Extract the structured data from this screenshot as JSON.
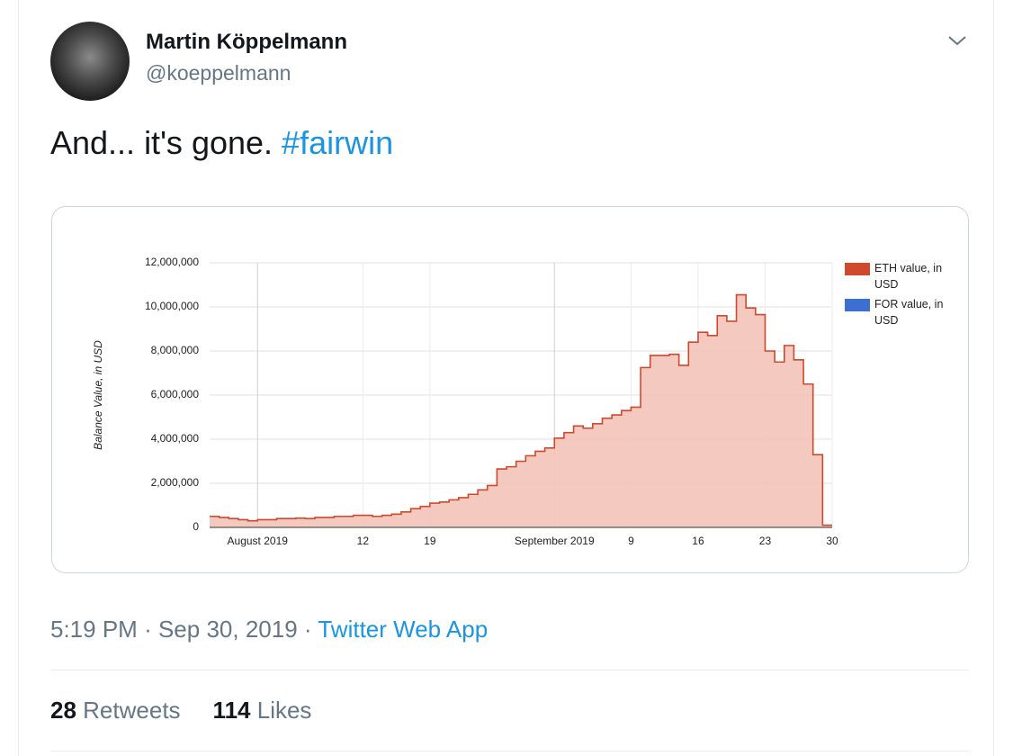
{
  "tweet": {
    "name": "Martin Köppelmann",
    "handle": "@koeppelmann",
    "text": "And... it's gone.",
    "hashtag": "#fairwin",
    "time": "5:19 PM",
    "separator": "·",
    "date": "Sep 30, 2019",
    "source": "Twitter Web App",
    "retweets": {
      "count": "28",
      "label": "Retweets"
    },
    "likes": {
      "count": "114",
      "label": "Likes"
    }
  },
  "chart_data": {
    "type": "stepped-area",
    "y_label": "Balance Value, in USD",
    "legend": "right",
    "grid": true,
    "x": [
      "2019-07-27",
      "2019-07-28",
      "2019-07-29",
      "2019-07-30",
      "2019-07-31",
      "2019-08-01",
      "2019-08-02",
      "2019-08-03",
      "2019-08-04",
      "2019-08-05",
      "2019-08-06",
      "2019-08-07",
      "2019-08-08",
      "2019-08-09",
      "2019-08-10",
      "2019-08-11",
      "2019-08-12",
      "2019-08-13",
      "2019-08-14",
      "2019-08-15",
      "2019-08-16",
      "2019-08-17",
      "2019-08-18",
      "2019-08-19",
      "2019-08-20",
      "2019-08-21",
      "2019-08-22",
      "2019-08-23",
      "2019-08-24",
      "2019-08-25",
      "2019-08-26",
      "2019-08-27",
      "2019-08-28",
      "2019-08-29",
      "2019-08-30",
      "2019-08-31",
      "2019-09-01",
      "2019-09-02",
      "2019-09-03",
      "2019-09-04",
      "2019-09-05",
      "2019-09-06",
      "2019-09-07",
      "2019-09-08",
      "2019-09-09",
      "2019-09-10",
      "2019-09-11",
      "2019-09-12",
      "2019-09-13",
      "2019-09-14",
      "2019-09-15",
      "2019-09-16",
      "2019-09-17",
      "2019-09-18",
      "2019-09-19",
      "2019-09-20",
      "2019-09-21",
      "2019-09-22",
      "2019-09-23",
      "2019-09-24",
      "2019-09-25",
      "2019-09-26",
      "2019-09-27",
      "2019-09-28",
      "2019-09-29"
    ],
    "series": [
      {
        "name": "ETH value, in USD",
        "color": "#d0492c",
        "fill": "#f2c3b9",
        "values": [
          500000,
          450000,
          400000,
          350000,
          300000,
          350000,
          350000,
          400000,
          400000,
          420000,
          400000,
          450000,
          450000,
          500000,
          500000,
          550000,
          550000,
          500000,
          550000,
          600000,
          700000,
          850000,
          950000,
          1100000,
          1150000,
          1250000,
          1350000,
          1500000,
          1700000,
          1900000,
          2650000,
          2750000,
          3000000,
          3250000,
          3450000,
          3600000,
          4050000,
          4300000,
          4600000,
          4500000,
          4700000,
          4950000,
          5100000,
          5300000,
          5450000,
          7250000,
          7800000,
          7800000,
          7850000,
          7350000,
          8400000,
          8850000,
          8700000,
          9600000,
          9350000,
          10550000,
          9950000,
          9650000,
          8000000,
          7500000,
          8250000,
          7600000,
          6500000,
          3300000,
          100000
        ]
      },
      {
        "name": "FOR value, in USD",
        "color": "#3d6fd0"
      }
    ],
    "xlim": [
      "2019-07-27",
      "2019-09-30"
    ],
    "xticks": [
      {
        "value": "2019-08-01",
        "label": "August 2019"
      },
      {
        "value": "2019-08-12",
        "label": "12"
      },
      {
        "value": "2019-08-19",
        "label": "19"
      },
      {
        "value": "2019-09-01",
        "label": "September 2019"
      },
      {
        "value": "2019-09-09",
        "label": "9"
      },
      {
        "value": "2019-09-16",
        "label": "16"
      },
      {
        "value": "2019-09-23",
        "label": "23"
      },
      {
        "value": "2019-09-30",
        "label": "30"
      }
    ],
    "ylim": [
      0,
      12000000
    ],
    "yticks": [
      0,
      {
        "value": 2000000,
        "label": "2,000,000"
      },
      {
        "value": 4000000,
        "label": "4,000,000"
      },
      {
        "value": 6000000,
        "label": "6,000,000"
      },
      {
        "value": 8000000,
        "label": "8,000,000"
      },
      {
        "value": 10000000,
        "label": "10,000,000"
      },
      {
        "value": 12000000,
        "label": "12,000,000"
      }
    ]
  }
}
